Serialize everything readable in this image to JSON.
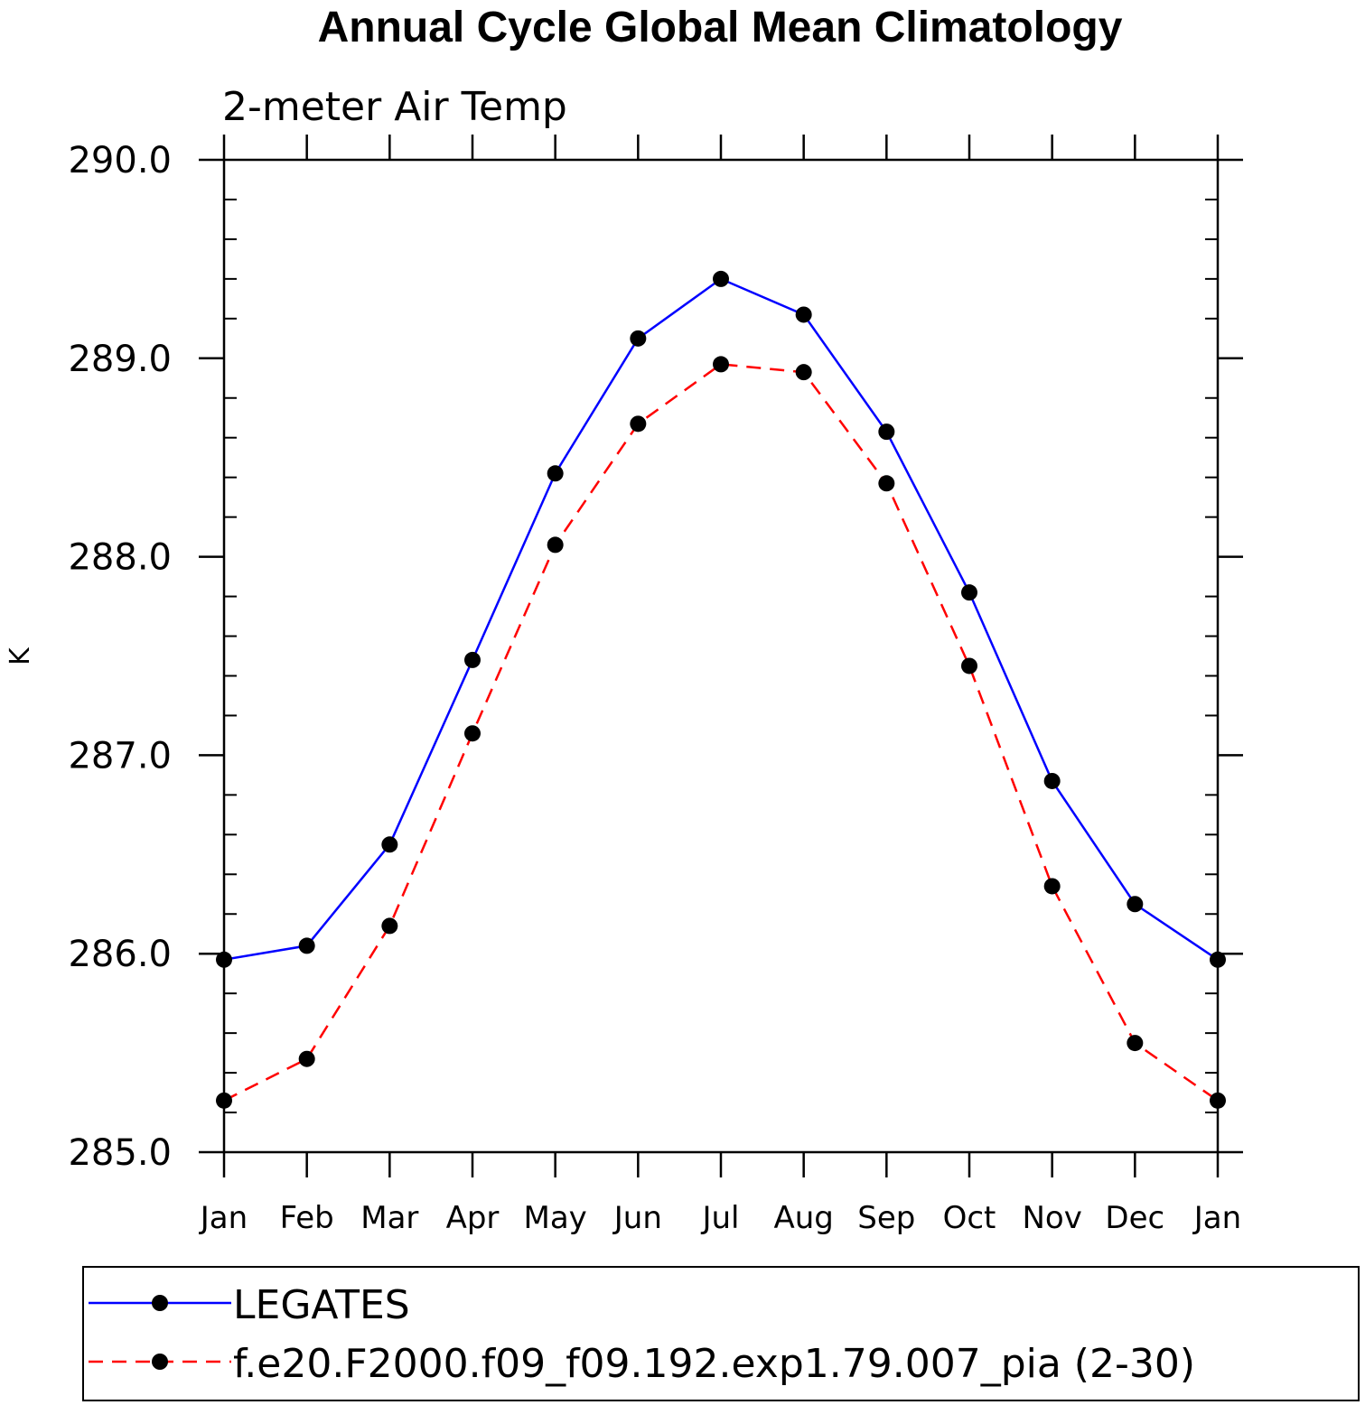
{
  "chart_data": {
    "type": "line",
    "title": "Annual Cycle Global Mean Climatology",
    "subtitle": "2-meter Air Temp",
    "xlabel": "",
    "ylabel": "K",
    "categories": [
      "Jan",
      "Feb",
      "Mar",
      "Apr",
      "May",
      "Jun",
      "Jul",
      "Aug",
      "Sep",
      "Oct",
      "Nov",
      "Dec",
      "Jan"
    ],
    "ylim": [
      285.0,
      290.0
    ],
    "yticks": [
      285.0,
      286.0,
      287.0,
      288.0,
      289.0,
      290.0
    ],
    "ytick_labels": [
      "285.0",
      "286.0",
      "287.0",
      "288.0",
      "289.0",
      "290.0"
    ],
    "grid": false,
    "legend_placement": "bottom",
    "series": [
      {
        "name": "LEGATES",
        "color": "#0000ff",
        "line_style": "solid",
        "marker": "filled-circle",
        "values": [
          285.97,
          286.04,
          286.55,
          287.48,
          288.42,
          289.1,
          289.4,
          289.22,
          288.63,
          287.82,
          286.87,
          286.25,
          285.97
        ]
      },
      {
        "name": "f.e20.F2000.f09_f09.192.exp1.79.007_pia (2-30)",
        "color": "#ff0000",
        "line_style": "dashed",
        "marker": "filled-circle",
        "values": [
          285.26,
          285.47,
          286.14,
          287.11,
          288.06,
          288.67,
          288.97,
          288.93,
          288.37,
          287.45,
          286.34,
          285.55,
          285.26
        ]
      }
    ]
  }
}
